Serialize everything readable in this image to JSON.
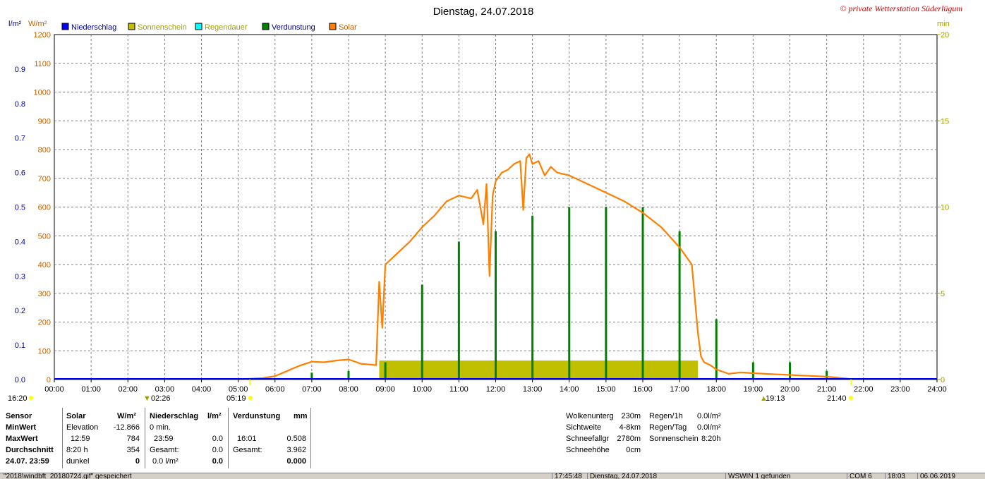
{
  "title": "Dienstag, 24.07.2018",
  "brand": "© private Wetterstation Süderlügum",
  "unit_left_a": "l/m²",
  "unit_left_b": "W/m²",
  "unit_right": "min",
  "legend": [
    {
      "label": "Niederschlag",
      "color": "#0000ff",
      "text_color": "#0000a0"
    },
    {
      "label": "Sonnenschein",
      "color": "#c0c000",
      "text_color": "#a0a000"
    },
    {
      "label": "Regendauer",
      "color": "#00ffff",
      "text_color": "#a0a000"
    },
    {
      "label": "Verdunstung",
      "color": "#008000",
      "text_color": "#000080"
    },
    {
      "label": "Solar",
      "color": "#ff8000",
      "text_color": "#c06000"
    }
  ],
  "markers": {
    "left_time": "16:20",
    "sunrise_time": "05:19",
    "moon_time": "02:26",
    "moonset_time": "19:13",
    "sunset_time": "21:40"
  },
  "table": {
    "sensor": {
      "head": "Sensor",
      "rows": [
        "MinWert",
        "MaxWert",
        "Durchschnitt",
        "24.07. 23:59"
      ]
    },
    "solar": {
      "head": "Solar",
      "unit": "W/m²",
      "rows": [
        [
          "Elevation",
          "-12.866"
        ],
        [
          "12:59",
          "784"
        ],
        [
          "8:20 h",
          "354"
        ],
        [
          "dunkel",
          "0"
        ]
      ]
    },
    "rain": {
      "head": "Niederschlag",
      "unit": "l/m²",
      "rows": [
        [
          "0 min.",
          ""
        ],
        [
          "23:59",
          "0.0"
        ],
        [
          "Gesamt:",
          "0.0"
        ],
        [
          "0.0 l/m²",
          "0.0"
        ]
      ]
    },
    "evap": {
      "head": "Verdunstung",
      "unit": "mm",
      "rows": [
        [
          "",
          ""
        ],
        [
          "16:01",
          "0.508"
        ],
        [
          "Gesamt:",
          "3.962"
        ],
        [
          "",
          "0.000"
        ]
      ]
    },
    "weather1": [
      [
        "Wolkenunterg",
        "230m"
      ],
      [
        "Sichtweite",
        "4-8km"
      ],
      [
        "Schneefallgr",
        "2780m"
      ],
      [
        "Schneehöhe",
        "0cm"
      ]
    ],
    "weather2": [
      [
        "Regen/1h",
        "0.0l/m²"
      ],
      [
        "Regen/Tag",
        "0.0l/m²"
      ],
      [
        "Sonnenschein",
        "8:20h"
      ]
    ]
  },
  "statusbar": [
    "\"2018\\windbft_20180724.gif\" gespeichert",
    "17:45:48",
    "Dienstag, 24.07.2018",
    "WSWIN 1 gefunden",
    "COM 6",
    "18:03",
    "06.06.2019"
  ],
  "chart_data": {
    "type": "line",
    "x_ticks": [
      "00:00",
      "01:00",
      "02:00",
      "03:00",
      "04:00",
      "05:00",
      "06:00",
      "07:00",
      "08:00",
      "09:00",
      "10:00",
      "11:00",
      "12:00",
      "13:00",
      "14:00",
      "15:00",
      "16:00",
      "17:00",
      "18:00",
      "19:00",
      "20:00",
      "21:00",
      "22:00",
      "23:00",
      "24:00"
    ],
    "xlim_hours": [
      0,
      24
    ],
    "y_left_rain": {
      "unit": "l/m²",
      "lim": [
        0,
        1.0
      ],
      "ticks": [
        "0.0",
        "0.1",
        "0.2",
        "0.3",
        "0.4",
        "0.5",
        "0.6",
        "0.7",
        "0.8",
        "0.9"
      ],
      "color": "#0000a0"
    },
    "y_left_solar": {
      "unit": "W/m²",
      "lim": [
        0,
        1200
      ],
      "ticks": [
        "0",
        "100",
        "200",
        "300",
        "400",
        "500",
        "600",
        "700",
        "800",
        "900",
        "1000",
        "1100",
        "1200"
      ],
      "color": "#c06000"
    },
    "y_right": {
      "unit": "min",
      "lim": [
        0,
        20
      ],
      "ticks": [
        "0",
        "5",
        "10",
        "15",
        "20"
      ],
      "color": "#a0a000"
    },
    "grid": true,
    "series": [
      {
        "name": "Solar",
        "axis": "solar",
        "color": "#ff8000",
        "x": [
          "05:10",
          "05:40",
          "06:00",
          "06:20",
          "06:40",
          "07:00",
          "07:20",
          "07:40",
          "08:00",
          "08:20",
          "08:45",
          "08:50",
          "08:55",
          "09:00",
          "09:20",
          "09:40",
          "10:00",
          "10:20",
          "10:40",
          "11:00",
          "11:20",
          "11:30",
          "11:40",
          "11:45",
          "11:50",
          "11:55",
          "12:00",
          "12:10",
          "12:20",
          "12:30",
          "12:40",
          "12:45",
          "12:50",
          "12:55",
          "13:00",
          "13:10",
          "13:20",
          "13:30",
          "13:40",
          "14:00",
          "14:30",
          "15:00",
          "15:30",
          "16:00",
          "16:30",
          "17:00",
          "17:20",
          "17:30",
          "17:35",
          "17:40",
          "17:50",
          "18:00",
          "18:20",
          "18:40",
          "19:00",
          "19:20",
          "19:40",
          "20:00",
          "20:20",
          "20:40",
          "21:00",
          "21:20",
          "21:40"
        ],
        "values": [
          2,
          5,
          12,
          30,
          48,
          62,
          60,
          66,
          70,
          55,
          50,
          340,
          180,
          400,
          440,
          480,
          530,
          570,
          620,
          640,
          630,
          660,
          540,
          680,
          360,
          640,
          690,
          720,
          730,
          750,
          760,
          590,
          770,
          784,
          750,
          760,
          710,
          740,
          720,
          710,
          680,
          650,
          620,
          580,
          530,
          460,
          400,
          160,
          80,
          60,
          50,
          35,
          20,
          25,
          22,
          20,
          18,
          16,
          14,
          12,
          10,
          6,
          2
        ]
      },
      {
        "name": "Sonnenschein",
        "axis": "right",
        "color": "#c0c000",
        "type": "bar_span",
        "from": "08:50",
        "to": "17:30",
        "value": 1.1
      },
      {
        "name": "Verdunstung",
        "axis": "right",
        "color": "#008000",
        "type": "bars",
        "x": [
          "07:00",
          "08:00",
          "09:00",
          "10:00",
          "11:00",
          "12:00",
          "13:00",
          "14:00",
          "15:00",
          "16:00",
          "17:00",
          "18:00",
          "19:00",
          "20:00",
          "21:00"
        ],
        "values": [
          0.4,
          0.5,
          1.0,
          5.5,
          8.0,
          8.6,
          9.5,
          10.0,
          10.0,
          10.0,
          8.6,
          3.5,
          1.0,
          1.0,
          0.5
        ]
      },
      {
        "name": "Niederschlag",
        "axis": "rain",
        "color": "#0000ff",
        "type": "baseline",
        "value": 0.0
      }
    ]
  }
}
